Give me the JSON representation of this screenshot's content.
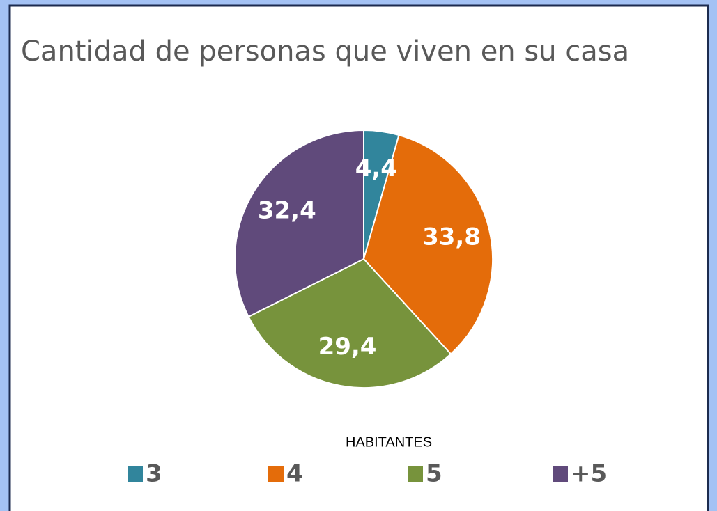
{
  "chart_data": {
    "type": "pie",
    "title": "Cantidad de personas que viven en su casa",
    "legend_title": "HABITANTES",
    "categories": [
      "3",
      "4",
      "5",
      "+5"
    ],
    "values": [
      4.4,
      33.8,
      29.4,
      32.4
    ],
    "value_labels": [
      "4,4",
      "33,8",
      "29,4",
      "32,4"
    ],
    "colors": [
      "#31859c",
      "#e46c0a",
      "#77933c",
      "#604a7b"
    ],
    "legend": "bottom"
  }
}
